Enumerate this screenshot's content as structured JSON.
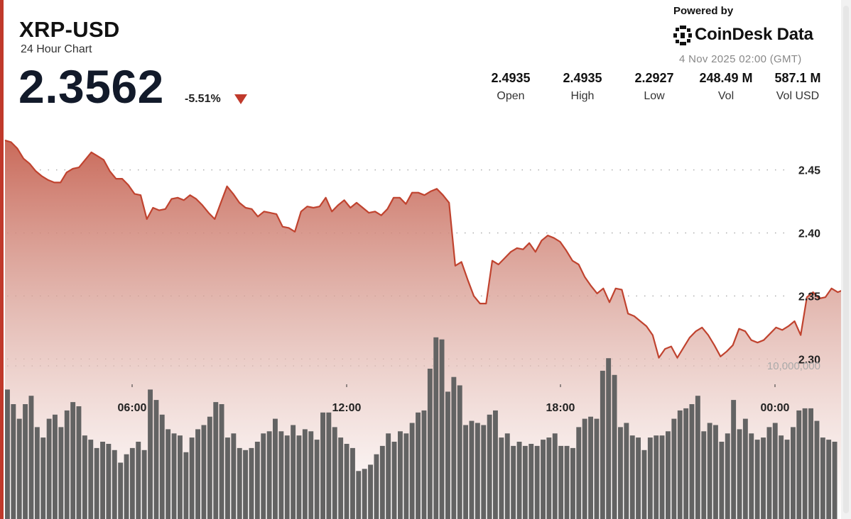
{
  "header": {
    "symbol": "XRP-USD",
    "subtitle": "24 Hour Chart",
    "price": "2.3562",
    "change": "-5.51%",
    "powered_by": "Powered by",
    "brand": "CoinDesk Data",
    "timestamp": "4 Nov 2025 02:00 (GMT)"
  },
  "stats": [
    {
      "value": "2.4935",
      "label": "Open"
    },
    {
      "value": "2.4935",
      "label": "High"
    },
    {
      "value": "2.2927",
      "label": "Low"
    },
    {
      "value": "248.49 M",
      "label": "Vol"
    },
    {
      "value": "587.1 M",
      "label": "Vol USD"
    }
  ],
  "colors": {
    "accent": "#c0392b",
    "line": "#c0432f",
    "area_top": "#c96a5a",
    "volume_bar": "#636363"
  },
  "chart_data": {
    "type": "area",
    "x_ticks": [
      "06:00",
      "12:00",
      "18:00",
      "00:00"
    ],
    "y_ticks": [
      "2.45",
      "2.40",
      "2.35",
      "2.30"
    ],
    "ylim": [
      2.2895,
      2.4785
    ],
    "volume_label": "10,000,000",
    "grid": "horizontal dotted",
    "price": [
      2.4735,
      2.472,
      2.467,
      2.459,
      2.455,
      2.449,
      2.445,
      2.442,
      2.44,
      2.44,
      2.448,
      2.451,
      2.452,
      2.458,
      2.464,
      2.461,
      2.458,
      2.449,
      2.443,
      2.443,
      2.438,
      2.431,
      2.43,
      2.411,
      2.42,
      2.418,
      2.419,
      2.427,
      2.428,
      2.426,
      2.43,
      2.427,
      2.422,
      2.416,
      2.411,
      2.424,
      2.437,
      2.431,
      2.424,
      2.42,
      2.419,
      2.413,
      2.417,
      2.416,
      2.415,
      2.405,
      2.404,
      2.401,
      2.417,
      2.421,
      2.42,
      2.421,
      2.428,
      2.417,
      2.422,
      2.426,
      2.42,
      2.424,
      2.42,
      2.416,
      2.417,
      2.414,
      2.419,
      2.428,
      2.428,
      2.423,
      2.432,
      2.432,
      2.43,
      2.433,
      2.435,
      2.43,
      2.424,
      2.374,
      2.377,
      2.363,
      2.35,
      2.344,
      2.344,
      2.378,
      2.375,
      2.38,
      2.385,
      2.388,
      2.387,
      2.392,
      2.385,
      2.394,
      2.398,
      2.396,
      2.393,
      2.386,
      2.378,
      2.375,
      2.365,
      2.358,
      2.352,
      2.356,
      2.345,
      2.356,
      2.355,
      2.336,
      2.334,
      2.33,
      2.326,
      2.319,
      2.301,
      2.308,
      2.31,
      2.301,
      2.309,
      2.317,
      2.322,
      2.325,
      2.319,
      2.311,
      2.302,
      2.306,
      2.311,
      2.324,
      2.322,
      2.315,
      2.313,
      2.315,
      2.32,
      2.325,
      2.323,
      2.326,
      2.33,
      2.319,
      2.349,
      2.353,
      2.348,
      2.349,
      2.356,
      2.353,
      2.355
    ],
    "volume": [
      62,
      55,
      48,
      55,
      59,
      44,
      39,
      48,
      50,
      44,
      52,
      56,
      54,
      40,
      38,
      34,
      37,
      36,
      33,
      27,
      31,
      34,
      37,
      33,
      62,
      57,
      50,
      43,
      41,
      40,
      32,
      39,
      43,
      45,
      49,
      56,
      55,
      39,
      41,
      34,
      33,
      34,
      37,
      41,
      42,
      48,
      42,
      40,
      45,
      40,
      43,
      42,
      38,
      51,
      51,
      44,
      39,
      36,
      34,
      23,
      24,
      26,
      31,
      35,
      41,
      37,
      42,
      41,
      46,
      51,
      52,
      72,
      87,
      86,
      61,
      68,
      64,
      45,
      47,
      46,
      45,
      50,
      52,
      39,
      41,
      35,
      37,
      35,
      36,
      35,
      38,
      39,
      41,
      35,
      35,
      34,
      44,
      48,
      49,
      48,
      71,
      77,
      69,
      44,
      46,
      40,
      39,
      33,
      39,
      40,
      40,
      42,
      48,
      52,
      53,
      55,
      59,
      42,
      46,
      45,
      37,
      41,
      57,
      43,
      48,
      41,
      38,
      39,
      44,
      46,
      40,
      38,
      44,
      52,
      53,
      53,
      47,
      39,
      38,
      37
    ]
  }
}
